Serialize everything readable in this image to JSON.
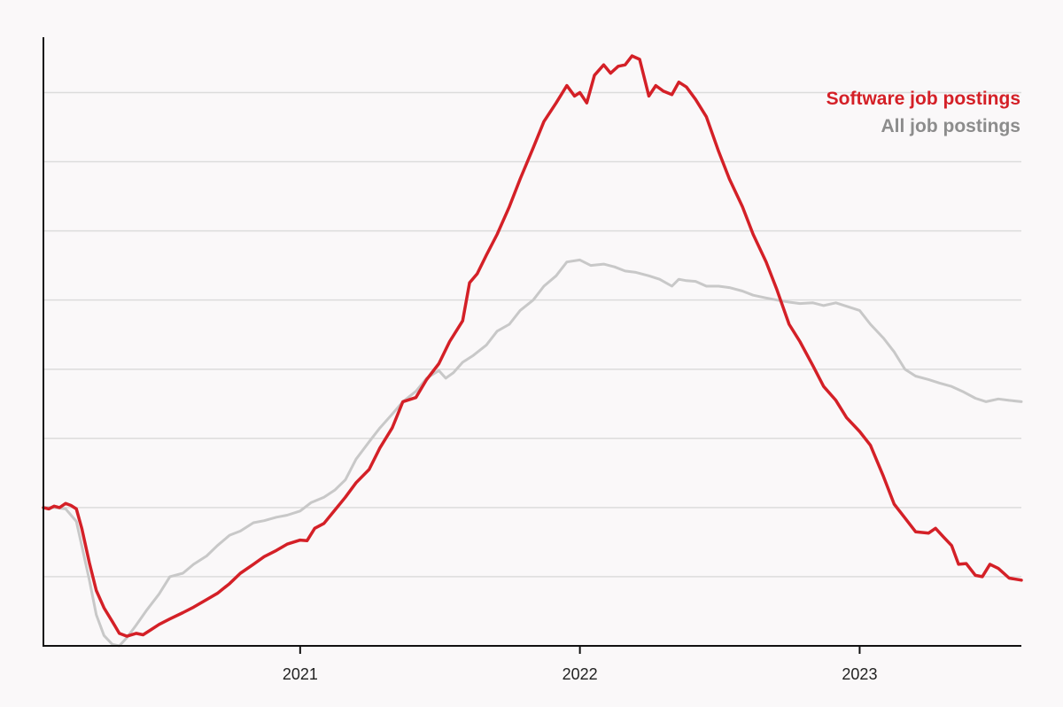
{
  "chart_data": {
    "type": "line",
    "title": "",
    "xlabel": "",
    "ylabel": "",
    "x_unit": "date",
    "xlim": [
      "2020-02-01",
      "2023-07-31"
    ],
    "x_ticks": [
      {
        "value": "2021-01-01",
        "label": "2021"
      },
      {
        "value": "2022-01-01",
        "label": "2022"
      },
      {
        "value": "2023-01-01",
        "label": "2023"
      }
    ],
    "y_axis_labels": "none",
    "y_grid_levels": [
      10,
      20,
      30,
      40,
      50,
      60,
      70,
      80
    ],
    "ylim": [
      0,
      88
    ],
    "grid": true,
    "legend": {
      "placement": "top-right",
      "entries": [
        {
          "label": "Software job postings",
          "color": "#d42027"
        },
        {
          "label": "All job postings",
          "color": "#8c8c8c"
        }
      ]
    },
    "series": [
      {
        "name": "Software job postings",
        "color": "#d42027",
        "points": [
          [
            "2020-02-01",
            20.0
          ],
          [
            "2020-02-08",
            19.8
          ],
          [
            "2020-02-15",
            20.2
          ],
          [
            "2020-02-22",
            20.0
          ],
          [
            "2020-03-01",
            20.6
          ],
          [
            "2020-03-08",
            20.3
          ],
          [
            "2020-03-15",
            19.8
          ],
          [
            "2020-03-22",
            17.0
          ],
          [
            "2020-04-01",
            12.0
          ],
          [
            "2020-04-10",
            8.0
          ],
          [
            "2020-04-20",
            5.5
          ],
          [
            "2020-05-01",
            3.5
          ],
          [
            "2020-05-10",
            1.8
          ],
          [
            "2020-05-20",
            1.4
          ],
          [
            "2020-06-01",
            1.8
          ],
          [
            "2020-06-10",
            1.6
          ],
          [
            "2020-06-20",
            2.3
          ],
          [
            "2020-07-01",
            3.1
          ],
          [
            "2020-07-15",
            3.9
          ],
          [
            "2020-08-01",
            4.8
          ],
          [
            "2020-08-15",
            5.6
          ],
          [
            "2020-09-01",
            6.7
          ],
          [
            "2020-09-15",
            7.6
          ],
          [
            "2020-10-01",
            9.0
          ],
          [
            "2020-10-15",
            10.5
          ],
          [
            "2020-11-01",
            11.8
          ],
          [
            "2020-11-15",
            12.9
          ],
          [
            "2020-12-01",
            13.8
          ],
          [
            "2020-12-15",
            14.7
          ],
          [
            "2021-01-01",
            15.3
          ],
          [
            "2021-01-10",
            15.2
          ],
          [
            "2021-01-20",
            17.0
          ],
          [
            "2021-02-01",
            17.7
          ],
          [
            "2021-02-15",
            19.6
          ],
          [
            "2021-03-01",
            21.5
          ],
          [
            "2021-03-15",
            23.6
          ],
          [
            "2021-04-01",
            25.5
          ],
          [
            "2021-04-15",
            28.6
          ],
          [
            "2021-05-01",
            31.5
          ],
          [
            "2021-05-15",
            35.3
          ],
          [
            "2021-06-01",
            35.9
          ],
          [
            "2021-06-15",
            38.5
          ],
          [
            "2021-07-01",
            40.8
          ],
          [
            "2021-07-15",
            44.0
          ],
          [
            "2021-08-01",
            47.0
          ],
          [
            "2021-08-10",
            52.5
          ],
          [
            "2021-08-20",
            53.8
          ],
          [
            "2021-09-01",
            56.5
          ],
          [
            "2021-09-15",
            59.5
          ],
          [
            "2021-10-01",
            63.5
          ],
          [
            "2021-10-15",
            67.5
          ],
          [
            "2021-11-01",
            72.0
          ],
          [
            "2021-11-15",
            75.8
          ],
          [
            "2021-12-01",
            78.5
          ],
          [
            "2021-12-15",
            81.0
          ],
          [
            "2021-12-25",
            79.5
          ],
          [
            "2022-01-01",
            80.0
          ],
          [
            "2022-01-10",
            78.5
          ],
          [
            "2022-01-20",
            82.5
          ],
          [
            "2022-02-01",
            84.0
          ],
          [
            "2022-02-10",
            82.8
          ],
          [
            "2022-02-20",
            83.8
          ],
          [
            "2022-03-01",
            84.0
          ],
          [
            "2022-03-10",
            85.3
          ],
          [
            "2022-03-20",
            84.8
          ],
          [
            "2022-04-01",
            79.5
          ],
          [
            "2022-04-10",
            81.0
          ],
          [
            "2022-04-20",
            80.2
          ],
          [
            "2022-05-01",
            79.7
          ],
          [
            "2022-05-10",
            81.5
          ],
          [
            "2022-05-20",
            80.8
          ],
          [
            "2022-06-01",
            79.0
          ],
          [
            "2022-06-15",
            76.5
          ],
          [
            "2022-07-01",
            71.5
          ],
          [
            "2022-07-15",
            67.5
          ],
          [
            "2022-08-01",
            63.5
          ],
          [
            "2022-08-15",
            59.5
          ],
          [
            "2022-09-01",
            55.5
          ],
          [
            "2022-09-15",
            51.5
          ],
          [
            "2022-10-01",
            46.5
          ],
          [
            "2022-10-15",
            44.0
          ],
          [
            "2022-11-01",
            40.5
          ],
          [
            "2022-11-15",
            37.5
          ],
          [
            "2022-12-01",
            35.5
          ],
          [
            "2022-12-15",
            33.0
          ],
          [
            "2023-01-01",
            31.0
          ],
          [
            "2023-01-15",
            29.0
          ],
          [
            "2023-02-01",
            24.5
          ],
          [
            "2023-02-15",
            20.5
          ],
          [
            "2023-03-01",
            18.5
          ],
          [
            "2023-03-15",
            16.5
          ],
          [
            "2023-04-01",
            16.3
          ],
          [
            "2023-04-10",
            17.0
          ],
          [
            "2023-04-20",
            15.8
          ],
          [
            "2023-05-01",
            14.5
          ],
          [
            "2023-05-10",
            11.8
          ],
          [
            "2023-05-20",
            11.9
          ],
          [
            "2023-06-01",
            10.2
          ],
          [
            "2023-06-10",
            10.0
          ],
          [
            "2023-06-20",
            11.8
          ],
          [
            "2023-07-01",
            11.2
          ],
          [
            "2023-07-15",
            9.8
          ],
          [
            "2023-07-31",
            9.5
          ]
        ]
      },
      {
        "name": "All job postings",
        "color": "#8c8c8c",
        "points": [
          [
            "2020-02-01",
            20.0
          ],
          [
            "2020-02-15",
            20.0
          ],
          [
            "2020-03-01",
            19.8
          ],
          [
            "2020-03-15",
            18.0
          ],
          [
            "2020-04-01",
            9.5
          ],
          [
            "2020-04-10",
            4.5
          ],
          [
            "2020-04-20",
            1.5
          ],
          [
            "2020-05-01",
            0.2
          ],
          [
            "2020-05-10",
            0.0
          ],
          [
            "2020-05-20",
            1.2
          ],
          [
            "2020-06-01",
            3.0
          ],
          [
            "2020-06-15",
            5.2
          ],
          [
            "2020-07-01",
            7.5
          ],
          [
            "2020-07-15",
            10.0
          ],
          [
            "2020-08-01",
            10.5
          ],
          [
            "2020-08-15",
            11.8
          ],
          [
            "2020-09-01",
            13.0
          ],
          [
            "2020-09-15",
            14.5
          ],
          [
            "2020-10-01",
            16.0
          ],
          [
            "2020-10-15",
            16.6
          ],
          [
            "2020-11-01",
            17.8
          ],
          [
            "2020-11-15",
            18.1
          ],
          [
            "2020-12-01",
            18.6
          ],
          [
            "2020-12-15",
            18.9
          ],
          [
            "2021-01-01",
            19.5
          ],
          [
            "2021-01-15",
            20.7
          ],
          [
            "2021-02-01",
            21.5
          ],
          [
            "2021-02-15",
            22.5
          ],
          [
            "2021-03-01",
            24.0
          ],
          [
            "2021-03-15",
            27.0
          ],
          [
            "2021-04-01",
            29.5
          ],
          [
            "2021-04-15",
            31.5
          ],
          [
            "2021-05-01",
            33.5
          ],
          [
            "2021-05-15",
            35.3
          ],
          [
            "2021-06-01",
            36.8
          ],
          [
            "2021-06-15",
            38.7
          ],
          [
            "2021-07-01",
            39.8
          ],
          [
            "2021-07-10",
            38.7
          ],
          [
            "2021-07-20",
            39.5
          ],
          [
            "2021-08-01",
            41.0
          ],
          [
            "2021-08-15",
            42.0
          ],
          [
            "2021-09-01",
            43.5
          ],
          [
            "2021-09-15",
            45.5
          ],
          [
            "2021-10-01",
            46.5
          ],
          [
            "2021-10-15",
            48.5
          ],
          [
            "2021-11-01",
            50.0
          ],
          [
            "2021-11-15",
            52.0
          ],
          [
            "2021-12-01",
            53.5
          ],
          [
            "2021-12-15",
            55.5
          ],
          [
            "2022-01-01",
            55.8
          ],
          [
            "2022-01-15",
            55.0
          ],
          [
            "2022-02-01",
            55.2
          ],
          [
            "2022-02-15",
            54.8
          ],
          [
            "2022-03-01",
            54.2
          ],
          [
            "2022-03-15",
            54.0
          ],
          [
            "2022-04-01",
            53.5
          ],
          [
            "2022-04-15",
            53.0
          ],
          [
            "2022-05-01",
            52.0
          ],
          [
            "2022-05-10",
            53.0
          ],
          [
            "2022-05-20",
            52.8
          ],
          [
            "2022-06-01",
            52.7
          ],
          [
            "2022-06-15",
            52.0
          ],
          [
            "2022-07-01",
            52.0
          ],
          [
            "2022-07-15",
            51.8
          ],
          [
            "2022-08-01",
            51.3
          ],
          [
            "2022-08-15",
            50.7
          ],
          [
            "2022-09-01",
            50.3
          ],
          [
            "2022-09-15",
            50.0
          ],
          [
            "2022-10-01",
            49.7
          ],
          [
            "2022-10-15",
            49.5
          ],
          [
            "2022-11-01",
            49.6
          ],
          [
            "2022-11-15",
            49.2
          ],
          [
            "2022-12-01",
            49.6
          ],
          [
            "2022-12-15",
            49.1
          ],
          [
            "2023-01-01",
            48.5
          ],
          [
            "2023-01-15",
            46.5
          ],
          [
            "2023-02-01",
            44.5
          ],
          [
            "2023-02-15",
            42.5
          ],
          [
            "2023-03-01",
            40.0
          ],
          [
            "2023-03-15",
            39.0
          ],
          [
            "2023-04-01",
            38.5
          ],
          [
            "2023-04-15",
            38.0
          ],
          [
            "2023-05-01",
            37.5
          ],
          [
            "2023-05-15",
            36.8
          ],
          [
            "2023-06-01",
            35.8
          ],
          [
            "2023-06-15",
            35.3
          ],
          [
            "2023-07-01",
            35.7
          ],
          [
            "2023-07-15",
            35.5
          ],
          [
            "2023-07-31",
            35.3
          ]
        ]
      }
    ]
  }
}
